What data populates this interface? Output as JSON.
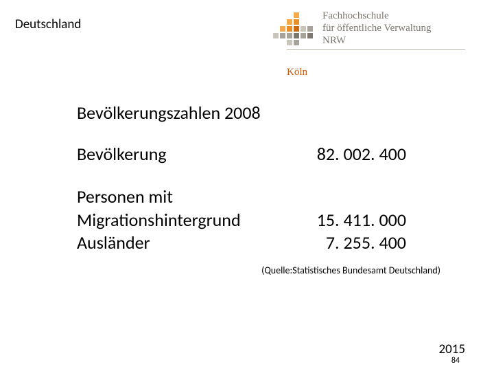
{
  "header": {
    "title": "Deutschland"
  },
  "institution": {
    "line1": "Fachhochschule",
    "line2": "für öffentliche Verwaltung",
    "line3": "NRW",
    "city": "Köln"
  },
  "logo": {
    "colors": {
      "orange_light": "#f4a94a",
      "orange_mid": "#e88f2a",
      "orange_dark": "#c96a12",
      "grey_light": "#c9c5bd",
      "grey_mid": "#a8a39a",
      "grey_dark": "#7d7870"
    },
    "grid": [
      [
        null,
        null,
        null,
        "orange_light",
        null,
        null
      ],
      [
        null,
        null,
        "orange_light",
        "orange_mid",
        null,
        null
      ],
      [
        null,
        "orange_light",
        "orange_mid",
        "orange_dark",
        "grey_light",
        "grey_mid"
      ],
      [
        "grey_light",
        "grey_mid",
        "grey_mid",
        "grey_dark",
        "grey_mid",
        "grey_dark"
      ],
      [
        null,
        null,
        "grey_light",
        "grey_mid",
        null,
        null
      ]
    ]
  },
  "content": {
    "subtitle": "Bevölkerungszahlen 2008",
    "rows": [
      {
        "label": "Bevölkerung",
        "value": "82. 002. 400"
      }
    ],
    "rows2": [
      {
        "label": "Personen mit",
        "value": ""
      },
      {
        "label": "Migrationshintergrund",
        "value": "15. 411. 000"
      },
      {
        "label": "Ausländer",
        "value": "7. 255. 400"
      }
    ],
    "source": "(Quelle:Statistisches Bundesamt Deutschland)"
  },
  "footer": {
    "year": "2015",
    "page": "84"
  }
}
